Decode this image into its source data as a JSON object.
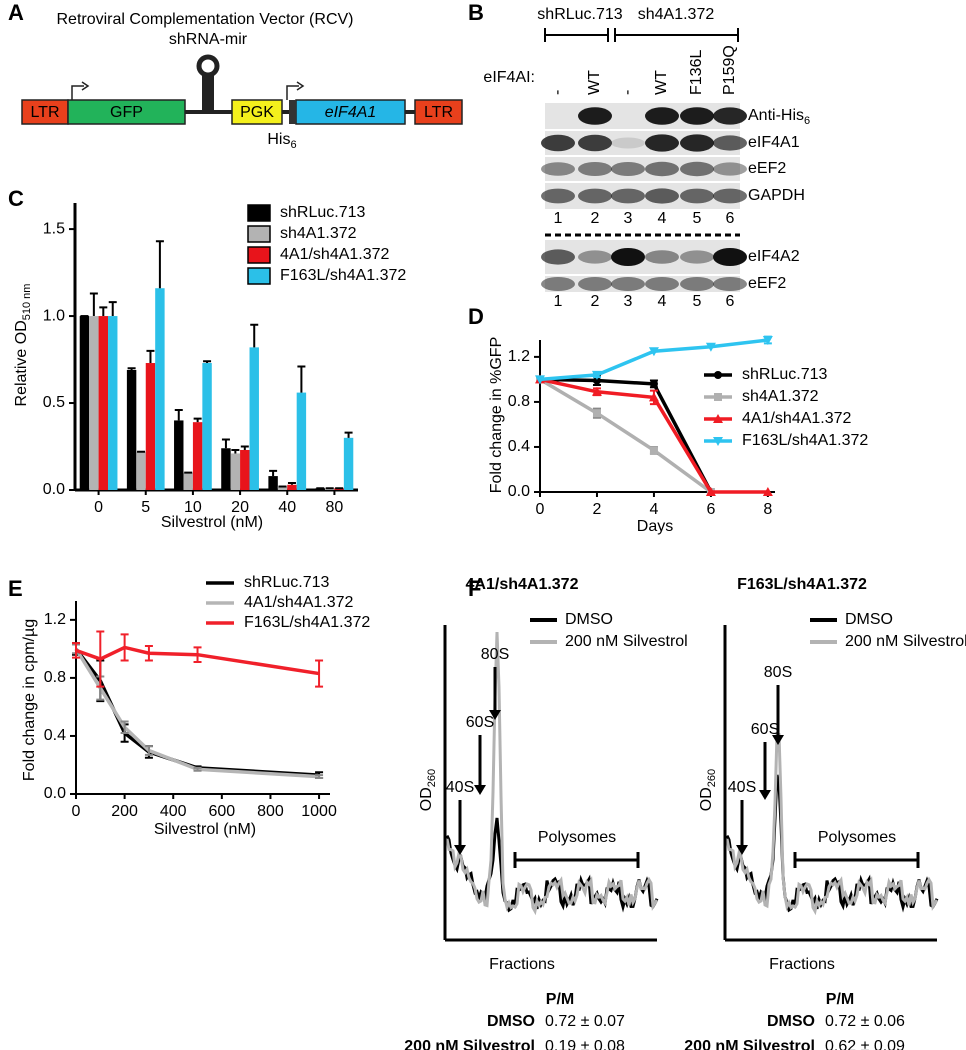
{
  "panel_labels": [
    "A",
    "B",
    "C",
    "D",
    "E",
    "F"
  ],
  "panel_a": {
    "title": "Retroviral Complementation Vector (RCV)",
    "hairpin": "shRNA-mir",
    "elements": [
      "LTR",
      "GFP",
      "PGK",
      "eIF4A1",
      "LTR"
    ],
    "tag": "His",
    "tag_sub": "6"
  },
  "panel_b": {
    "groups": [
      "shRLuc.713",
      "sh4A1.372"
    ],
    "row_title": "eIF4AI:",
    "lanes": [
      "-",
      "WT",
      "-",
      "WT",
      "F136L",
      "P159Q"
    ],
    "rows_top": [
      "Anti-His",
      "eIF4A1",
      "eEF2",
      "GAPDH"
    ],
    "anti_sub": "6",
    "rows_bottom": [
      "eIF4A2",
      "eEF2"
    ],
    "lane_numbers": [
      "1",
      "2",
      "3",
      "4",
      "5",
      "6"
    ]
  },
  "chart_data": [
    {
      "type": "bar",
      "y_label": "Relative OD",
      "y_label_sub": "510 nm",
      "x_label": "Silvestrol (nM)",
      "categories": [
        "0",
        "5",
        "10",
        "20",
        "40",
        "80"
      ],
      "ylim": [
        0,
        1.65
      ],
      "yticks": [
        {
          "value": 0,
          "label": "0.0"
        },
        {
          "value": 0.5,
          "label": "0.5"
        },
        {
          "value": 1,
          "label": "1.0"
        },
        {
          "value": 1.5,
          "label": "1.5"
        }
      ],
      "series": [
        {
          "name": "shRLuc.713",
          "color": "#000000",
          "values": [
            1.0,
            0.69,
            0.4,
            0.24,
            0.08,
            0.01
          ],
          "errors": [
            0,
            0.01,
            0.06,
            0.05,
            0.03,
            0
          ]
        },
        {
          "name": "sh4A1.372",
          "color": "#b3b3b3",
          "values": [
            1.0,
            0.22,
            0.1,
            0.21,
            0.02,
            0.01
          ],
          "errors": [
            0.13,
            0,
            0,
            0.02,
            0,
            0
          ]
        },
        {
          "name": "4A1/sh4A1.372",
          "color": "#e8141b",
          "values": [
            1.0,
            0.73,
            0.39,
            0.23,
            0.03,
            0.01
          ],
          "errors": [
            0.05,
            0.07,
            0.02,
            0.02,
            0.01,
            0
          ]
        },
        {
          "name": "F163L/sh4A1.372",
          "color": "#2bc0e8",
          "values": [
            1.0,
            1.16,
            0.73,
            0.82,
            0.56,
            0.3
          ],
          "errors": [
            0.08,
            0.27,
            0.01,
            0.13,
            0.15,
            0.03
          ]
        }
      ]
    },
    {
      "type": "line",
      "y_label": "Fold change in %GFP",
      "x_label": "Days",
      "x": [
        0,
        2,
        4,
        6,
        8
      ],
      "xlim": [
        0,
        8.25
      ],
      "xticks": [
        0,
        2,
        4,
        6,
        8
      ],
      "ylim": [
        0,
        1.35
      ],
      "yticks": [
        {
          "value": 0,
          "label": "0.0"
        },
        0.4,
        0.8,
        1.2
      ],
      "series": [
        {
          "name": "shRLuc.713",
          "color": "#000000",
          "marker": "circle",
          "values": [
            1.0,
            0.99,
            0.96,
            0.0,
            null
          ],
          "errors": [
            0,
            0.04,
            0.03,
            0,
            null
          ]
        },
        {
          "name": "sh4A1.372",
          "color": "#b0b0b0",
          "marker": "square",
          "values": [
            1.0,
            0.7,
            0.37,
            0.0,
            null
          ],
          "errors": [
            0,
            0.04,
            0.03,
            0,
            null
          ]
        },
        {
          "name": "4A1/sh4A1.372",
          "color": "#f01c24",
          "marker": "triangle",
          "values": [
            1.0,
            0.89,
            0.84,
            0.0,
            0.0
          ],
          "errors": [
            0,
            0.03,
            0.06,
            0,
            0
          ]
        },
        {
          "name": "F163L/sh4A1.372",
          "color": "#2ec4f0",
          "marker": "triangle-down",
          "values": [
            1.0,
            1.04,
            1.25,
            1.29,
            1.35
          ],
          "errors": [
            0,
            0.02,
            0,
            0,
            0.03
          ]
        }
      ]
    },
    {
      "type": "line",
      "y_label": "Fold change in cpm/µg",
      "x_label": "Silvestrol (nM)",
      "x": [
        0,
        100,
        200,
        300,
        500,
        1000
      ],
      "xlim": [
        0,
        1045
      ],
      "xticks": [
        0,
        200,
        400,
        600,
        800,
        1000
      ],
      "ylim": [
        0,
        1.33
      ],
      "yticks": [
        {
          "value": 0,
          "label": "0.0"
        },
        0.4,
        0.8,
        1.2
      ],
      "series": [
        {
          "name": "shRLuc.713",
          "color": "#000000",
          "values": [
            1.0,
            0.78,
            0.42,
            0.29,
            0.18,
            0.13
          ],
          "errors": [
            0.04,
            0.14,
            0.06,
            0.04,
            0.01,
            0.02
          ]
        },
        {
          "name": "4A1/sh4A1.372",
          "color": "#b5b5b5",
          "values": [
            1.0,
            0.73,
            0.46,
            0.3,
            0.17,
            0.12
          ],
          "errors": [
            0.03,
            0.08,
            0.04,
            0.03,
            0.01,
            0.01
          ]
        },
        {
          "name": "F163L/sh4A1.372",
          "color": "#f0202a",
          "values": [
            0.99,
            0.93,
            1.01,
            0.97,
            0.96,
            0.83
          ],
          "errors": [
            0.05,
            0.19,
            0.09,
            0.05,
            0.05,
            0.09
          ]
        }
      ]
    }
  ],
  "panel_f": {
    "y_label": "OD",
    "y_label_sub": "260",
    "x_label": "Fractions",
    "legend": [
      "DMSO",
      "200 nM Silvestrol"
    ],
    "peaks": [
      "40S",
      "60S",
      "80S"
    ],
    "polysomes": "Polysomes",
    "ratio_header": "P/M",
    "profiles": [
      {
        "title": "4A1/sh4A1.372",
        "ratios": [
          "0.72 ± 0.07",
          "0.19 ± 0.08"
        ]
      },
      {
        "title": "F163L/sh4A1.372",
        "ratios": [
          "0.72 ± 0.06",
          "0.62 ± 0.09"
        ]
      }
    ]
  }
}
